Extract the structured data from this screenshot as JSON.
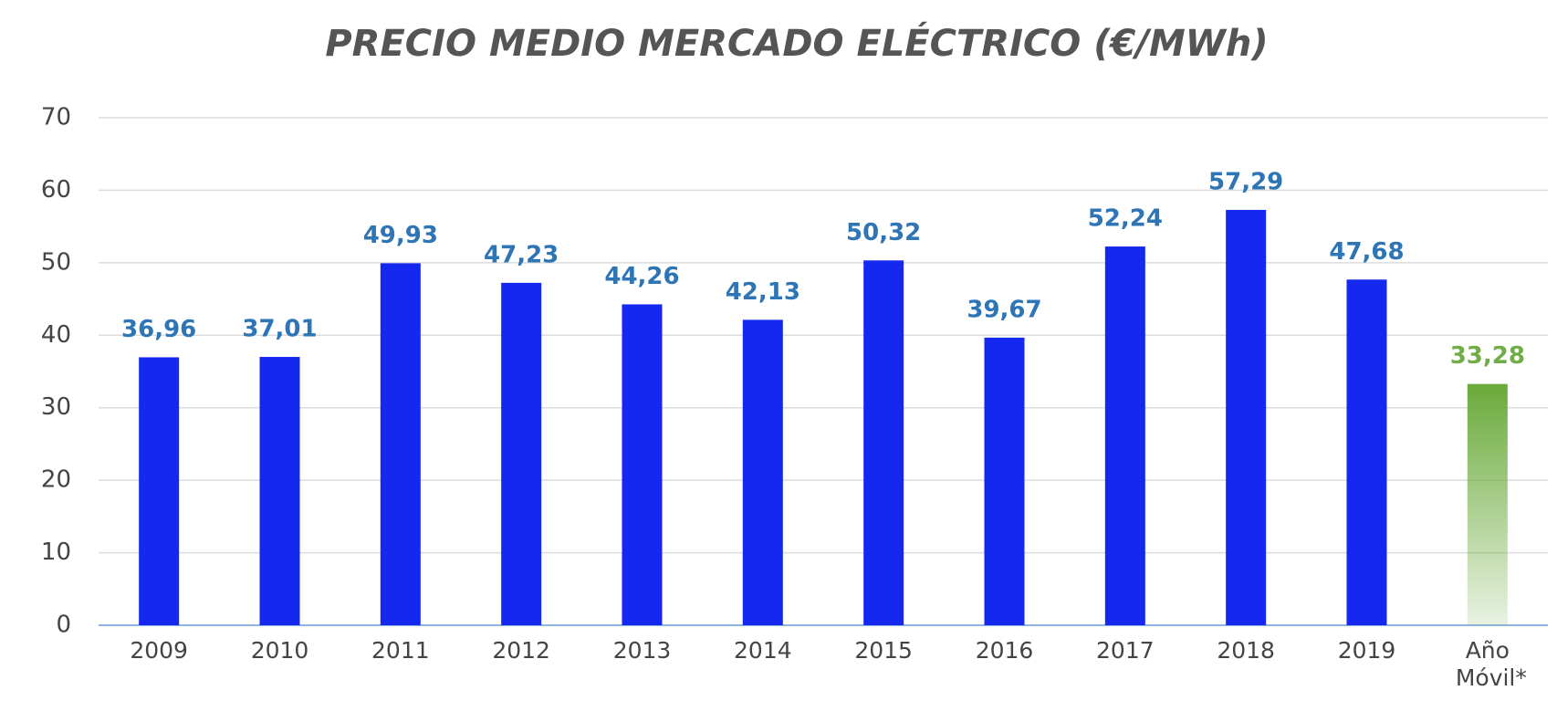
{
  "chart_data": {
    "type": "bar",
    "title": "PRECIO MEDIO MERCADO ELÉCTRICO (€/MWh)",
    "categories": [
      "2009",
      "2010",
      "2011",
      "2012",
      "2013",
      "2014",
      "2015",
      "2016",
      "2017",
      "2018",
      "2019",
      "Año Móvil*"
    ],
    "values": [
      36.96,
      37.01,
      49.93,
      47.23,
      44.26,
      42.13,
      50.32,
      39.67,
      52.24,
      57.29,
      47.68,
      33.28
    ],
    "value_labels": [
      "36,96",
      "37,01",
      "49,93",
      "47,23",
      "44,26",
      "42,13",
      "50,32",
      "39,67",
      "52,24",
      "57,29",
      "47,68",
      "33,28"
    ],
    "colors": [
      "#1428f0",
      "#1428f0",
      "#1428f0",
      "#1428f0",
      "#1428f0",
      "#1428f0",
      "#1428f0",
      "#1428f0",
      "#1428f0",
      "#1428f0",
      "#1428f0",
      "#6aaa3a"
    ],
    "label_colors": [
      "#2e75b6",
      "#2e75b6",
      "#2e75b6",
      "#2e75b6",
      "#2e75b6",
      "#2e75b6",
      "#2e75b6",
      "#2e75b6",
      "#2e75b6",
      "#2e75b6",
      "#2e75b6",
      "#70ad47"
    ],
    "ylim": [
      0,
      70
    ],
    "yticks": [
      0,
      10,
      20,
      30,
      40,
      50,
      60,
      70
    ],
    "grid": true
  }
}
